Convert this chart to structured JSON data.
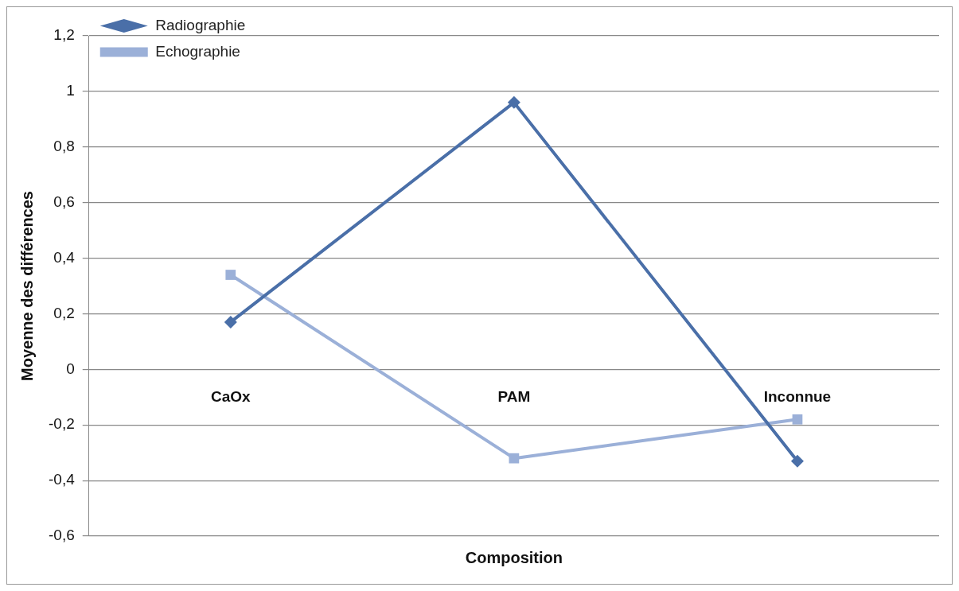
{
  "chart_data": {
    "type": "line",
    "xlabel": "Composition",
    "ylabel": "Moyenne des différences",
    "categories": [
      "CaOx",
      "PAM",
      "Inconnue"
    ],
    "series": [
      {
        "name": "Radiographie",
        "color": "#4a6fa8",
        "marker": "diamond",
        "values": [
          0.17,
          0.96,
          -0.33
        ]
      },
      {
        "name": "Echographie",
        "color": "#9bb0d8",
        "marker": "square",
        "values": [
          0.34,
          -0.32,
          -0.18
        ]
      }
    ],
    "ylim": [
      -0.6,
      1.2
    ],
    "yticks": [
      {
        "value": -0.6,
        "label": "-0,6"
      },
      {
        "value": -0.4,
        "label": "-0,4"
      },
      {
        "value": -0.2,
        "label": "-0,2"
      },
      0,
      {
        "value": 0.2,
        "label": "0,2"
      },
      {
        "value": 0.4,
        "label": "0,4"
      },
      {
        "value": 0.6,
        "label": "0,6"
      },
      {
        "value": 0.8,
        "label": "0,8"
      },
      1,
      {
        "value": 1.2,
        "label": "1,2"
      }
    ],
    "grid": "y",
    "legend": "top left"
  }
}
